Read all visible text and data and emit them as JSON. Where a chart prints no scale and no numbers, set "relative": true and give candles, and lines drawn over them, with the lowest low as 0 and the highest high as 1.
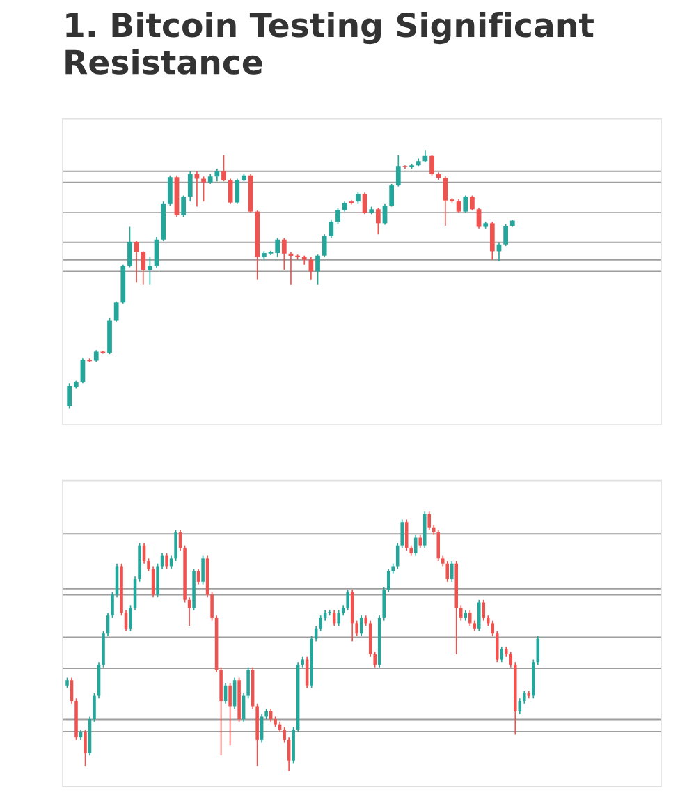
{
  "chart_data": [
    {
      "type": "candlestick",
      "title": "1. Bitcoin Testing Significant Resistance",
      "relative": true,
      "categories": [
        null,
        null,
        null,
        null,
        null,
        null,
        null,
        null,
        null,
        null,
        null,
        null,
        null,
        null,
        null,
        null,
        null,
        null,
        null,
        null,
        null,
        null,
        null,
        null,
        null,
        null,
        null,
        null,
        null,
        null,
        null,
        null,
        null,
        null,
        null,
        null,
        null,
        null,
        null,
        null,
        null,
        null,
        null,
        null,
        null,
        null,
        null,
        null,
        null,
        null,
        null,
        null,
        null,
        null,
        null,
        null,
        null,
        null,
        null,
        null,
        null,
        null,
        null,
        null,
        null,
        null,
        null
      ],
      "ohlc": [
        [
          0.01,
          0.098,
          0,
          0.088
        ],
        [
          0.084,
          0.107,
          0.078,
          0.104
        ],
        [
          0.104,
          0.195,
          0.098,
          0.189
        ],
        [
          0.189,
          0.195,
          0.18,
          0.184
        ],
        [
          0.186,
          0.227,
          0.18,
          0.221
        ],
        [
          0.221,
          0.225,
          0.213,
          0.217
        ],
        [
          0.217,
          0.352,
          0.211,
          0.342
        ],
        [
          0.342,
          0.414,
          0.336,
          0.41
        ],
        [
          0.41,
          0.557,
          0.406,
          0.551
        ],
        [
          0.551,
          0.703,
          0.547,
          0.645
        ],
        [
          0.645,
          0.648,
          0.488,
          0.605
        ],
        [
          0.605,
          0.609,
          0.479,
          0.537
        ],
        [
          0.537,
          0.586,
          0.479,
          0.551
        ],
        [
          0.551,
          0.664,
          0.543,
          0.654
        ],
        [
          0.654,
          0.801,
          0.648,
          0.791
        ],
        [
          0.791,
          0.902,
          0.785,
          0.895
        ],
        [
          0.895,
          0.902,
          0.742,
          0.748
        ],
        [
          0.748,
          0.824,
          0.742,
          0.82
        ],
        [
          0.82,
          0.918,
          0.801,
          0.908
        ],
        [
          0.908,
          0.918,
          0.781,
          0.889
        ],
        [
          0.889,
          0.898,
          0.801,
          0.875
        ],
        [
          0.875,
          0.908,
          0.869,
          0.898
        ],
        [
          0.898,
          0.928,
          0.879,
          0.918
        ],
        [
          0.918,
          0.98,
          0.879,
          0.883
        ],
        [
          0.883,
          0.889,
          0.791,
          0.797
        ],
        [
          0.797,
          0.889,
          0.791,
          0.883
        ],
        [
          0.883,
          0.908,
          0.879,
          0.902
        ],
        [
          0.902,
          0.908,
          0.758,
          0.762
        ],
        [
          0.762,
          0.766,
          0.498,
          0.586
        ],
        [
          0.586,
          0.609,
          0.576,
          0.602
        ],
        [
          0.6,
          0.611,
          0.594,
          0.605
        ],
        [
          0.602,
          0.66,
          0.586,
          0.654
        ],
        [
          0.654,
          0.66,
          0.537,
          0.6
        ],
        [
          0.6,
          0.605,
          0.479,
          0.59
        ],
        [
          0.592,
          0.596,
          0.576,
          0.586
        ],
        [
          0.586,
          0.592,
          0.557,
          0.576
        ],
        [
          0.576,
          0.586,
          0.498,
          0.531
        ],
        [
          0.531,
          0.596,
          0.479,
          0.592
        ],
        [
          0.592,
          0.674,
          0.586,
          0.668
        ],
        [
          0.668,
          0.732,
          0.66,
          0.723
        ],
        [
          0.723,
          0.775,
          0.713,
          0.768
        ],
        [
          0.768,
          0.801,
          0.762,
          0.795
        ],
        [
          0.801,
          0.807,
          0.789,
          0.795
        ],
        [
          0.801,
          0.836,
          0.791,
          0.83
        ],
        [
          0.83,
          0.836,
          0.752,
          0.758
        ],
        [
          0.758,
          0.781,
          0.752,
          0.771
        ],
        [
          0.771,
          0.777,
          0.674,
          0.717
        ],
        [
          0.717,
          0.791,
          0.711,
          0.785
        ],
        [
          0.785,
          0.869,
          0.781,
          0.863
        ],
        [
          0.863,
          0.98,
          0.859,
          0.938
        ],
        [
          0.938,
          0.941,
          0.928,
          0.934
        ],
        [
          0.934,
          0.947,
          0.928,
          0.941
        ],
        [
          0.941,
          0.967,
          0.938,
          0.957
        ],
        [
          0.957,
          1.0,
          0.953,
          0.977
        ],
        [
          0.977,
          0.98,
          0.902,
          0.908
        ],
        [
          0.908,
          0.914,
          0.885,
          0.893
        ],
        [
          0.893,
          0.898,
          0.707,
          0.805
        ],
        [
          0.809,
          0.814,
          0.797,
          0.803
        ],
        [
          0.803,
          0.811,
          0.758,
          0.762
        ],
        [
          0.762,
          0.824,
          0.758,
          0.82
        ],
        [
          0.82,
          0.824,
          0.766,
          0.771
        ],
        [
          0.771,
          0.777,
          0.697,
          0.703
        ],
        [
          0.703,
          0.723,
          0.697,
          0.717
        ],
        [
          0.717,
          0.723,
          0.576,
          0.609
        ],
        [
          0.609,
          0.641,
          0.57,
          0.635
        ],
        [
          0.635,
          0.713,
          0.629,
          0.707
        ],
        [
          0.707,
          0.73,
          0.703,
          0.727
        ]
      ],
      "ref_lines": [
        {
          "axis": "y",
          "value": 0.918
        },
        {
          "axis": "y",
          "value": 0.875
        },
        {
          "axis": "y",
          "value": 0.758
        },
        {
          "axis": "y",
          "value": 0.643
        },
        {
          "axis": "y",
          "value": 0.576
        },
        {
          "axis": "y",
          "value": 0.531
        }
      ]
    },
    {
      "type": "candlestick",
      "relative": true,
      "categories": [
        null,
        null,
        null,
        null,
        null,
        null,
        null,
        null,
        null,
        null,
        null,
        null,
        null,
        null,
        null,
        null,
        null,
        null,
        null,
        null,
        null,
        null,
        null,
        null,
        null,
        null,
        null,
        null,
        null,
        null,
        null,
        null,
        null,
        null,
        null,
        null,
        null,
        null,
        null,
        null,
        null,
        null,
        null,
        null,
        null,
        null,
        null,
        null,
        null,
        null,
        null,
        null,
        null,
        null,
        null,
        null,
        null,
        null,
        null,
        null,
        null,
        null,
        null,
        null,
        null,
        null,
        null,
        null,
        null,
        null,
        null,
        null,
        null,
        null,
        null,
        null,
        null,
        null,
        null,
        null,
        null,
        null,
        null,
        null,
        null,
        null,
        null,
        null,
        null,
        null,
        null,
        null,
        null,
        null,
        null,
        null,
        null,
        null,
        null,
        null,
        null,
        null,
        null,
        null,
        null
      ],
      "ohlc": [
        [
          0.33,
          0.36,
          0.32,
          0.35
        ],
        [
          0.35,
          0.36,
          0.26,
          0.27
        ],
        [
          0.27,
          0.28,
          0.12,
          0.13
        ],
        [
          0.13,
          0.16,
          0.12,
          0.15
        ],
        [
          0.15,
          0.16,
          0.02,
          0.07
        ],
        [
          0.07,
          0.21,
          0.06,
          0.2
        ],
        [
          0.2,
          0.3,
          0.19,
          0.29
        ],
        [
          0.29,
          0.42,
          0.28,
          0.41
        ],
        [
          0.41,
          0.54,
          0.4,
          0.53
        ],
        [
          0.53,
          0.61,
          0.52,
          0.6
        ],
        [
          0.6,
          0.69,
          0.59,
          0.68
        ],
        [
          0.68,
          0.8,
          0.67,
          0.79
        ],
        [
          0.79,
          0.8,
          0.6,
          0.61
        ],
        [
          0.61,
          0.62,
          0.54,
          0.55
        ],
        [
          0.55,
          0.64,
          0.54,
          0.63
        ],
        [
          0.63,
          0.75,
          0.62,
          0.74
        ],
        [
          0.74,
          0.88,
          0.73,
          0.87
        ],
        [
          0.87,
          0.88,
          0.8,
          0.81
        ],
        [
          0.81,
          0.82,
          0.77,
          0.78
        ],
        [
          0.78,
          0.79,
          0.67,
          0.68
        ],
        [
          0.68,
          0.8,
          0.67,
          0.79
        ],
        [
          0.79,
          0.84,
          0.78,
          0.83
        ],
        [
          0.83,
          0.84,
          0.78,
          0.79
        ],
        [
          0.79,
          0.83,
          0.78,
          0.82
        ],
        [
          0.82,
          0.93,
          0.81,
          0.92
        ],
        [
          0.92,
          0.93,
          0.85,
          0.86
        ],
        [
          0.86,
          0.87,
          0.65,
          0.66
        ],
        [
          0.66,
          0.67,
          0.56,
          0.63
        ],
        [
          0.63,
          0.78,
          0.62,
          0.77
        ],
        [
          0.77,
          0.78,
          0.72,
          0.73
        ],
        [
          0.73,
          0.83,
          0.72,
          0.82
        ],
        [
          0.82,
          0.83,
          0.67,
          0.68
        ],
        [
          0.68,
          0.69,
          0.58,
          0.59
        ],
        [
          0.59,
          0.6,
          0.38,
          0.39
        ],
        [
          0.39,
          0.4,
          0.06,
          0.27
        ],
        [
          0.27,
          0.34,
          0.26,
          0.33
        ],
        [
          0.33,
          0.34,
          0.1,
          0.25
        ],
        [
          0.25,
          0.36,
          0.24,
          0.35
        ],
        [
          0.35,
          0.36,
          0.19,
          0.2
        ],
        [
          0.2,
          0.3,
          0.19,
          0.29
        ],
        [
          0.29,
          0.4,
          0.28,
          0.39
        ],
        [
          0.39,
          0.4,
          0.24,
          0.25
        ],
        [
          0.25,
          0.26,
          0.02,
          0.12
        ],
        [
          0.12,
          0.22,
          0.11,
          0.21
        ],
        [
          0.21,
          0.24,
          0.2,
          0.23
        ],
        [
          0.23,
          0.24,
          0.19,
          0.2
        ],
        [
          0.2,
          0.21,
          0.17,
          0.18
        ],
        [
          0.18,
          0.19,
          0.15,
          0.16
        ],
        [
          0.16,
          0.17,
          0.11,
          0.12
        ],
        [
          0.12,
          0.13,
          0.0,
          0.04
        ],
        [
          0.04,
          0.17,
          0.03,
          0.16
        ],
        [
          0.16,
          0.42,
          0.15,
          0.41
        ],
        [
          0.41,
          0.44,
          0.4,
          0.43
        ],
        [
          0.43,
          0.44,
          0.32,
          0.33
        ],
        [
          0.33,
          0.52,
          0.32,
          0.51
        ],
        [
          0.51,
          0.56,
          0.5,
          0.55
        ],
        [
          0.55,
          0.6,
          0.54,
          0.59
        ],
        [
          0.59,
          0.62,
          0.58,
          0.61
        ],
        [
          0.61,
          0.62,
          0.6,
          0.61
        ],
        [
          0.61,
          0.62,
          0.56,
          0.57
        ],
        [
          0.57,
          0.62,
          0.56,
          0.61
        ],
        [
          0.61,
          0.64,
          0.6,
          0.63
        ],
        [
          0.63,
          0.7,
          0.62,
          0.69
        ],
        [
          0.69,
          0.7,
          0.5,
          0.57
        ],
        [
          0.57,
          0.58,
          0.52,
          0.53
        ],
        [
          0.53,
          0.6,
          0.52,
          0.59
        ],
        [
          0.59,
          0.6,
          0.56,
          0.57
        ],
        [
          0.57,
          0.58,
          0.44,
          0.45
        ],
        [
          0.45,
          0.46,
          0.4,
          0.41
        ],
        [
          0.41,
          0.6,
          0.4,
          0.59
        ],
        [
          0.59,
          0.71,
          0.58,
          0.7
        ],
        [
          0.7,
          0.78,
          0.69,
          0.77
        ],
        [
          0.77,
          0.8,
          0.76,
          0.79
        ],
        [
          0.79,
          0.88,
          0.78,
          0.87
        ],
        [
          0.87,
          0.97,
          0.86,
          0.96
        ],
        [
          0.96,
          0.97,
          0.85,
          0.86
        ],
        [
          0.86,
          0.87,
          0.83,
          0.84
        ],
        [
          0.84,
          0.91,
          0.83,
          0.9
        ],
        [
          0.9,
          0.91,
          0.86,
          0.87
        ],
        [
          0.87,
          1.0,
          0.86,
          0.99
        ],
        [
          0.99,
          1.0,
          0.93,
          0.94
        ],
        [
          0.94,
          0.95,
          0.91,
          0.92
        ],
        [
          0.92,
          0.93,
          0.81,
          0.82
        ],
        [
          0.82,
          0.83,
          0.79,
          0.8
        ],
        [
          0.8,
          0.81,
          0.73,
          0.74
        ],
        [
          0.74,
          0.81,
          0.73,
          0.8
        ],
        [
          0.8,
          0.81,
          0.45,
          0.63
        ],
        [
          0.63,
          0.64,
          0.58,
          0.59
        ],
        [
          0.59,
          0.62,
          0.58,
          0.61
        ],
        [
          0.61,
          0.62,
          0.56,
          0.57
        ],
        [
          0.57,
          0.58,
          0.54,
          0.55
        ],
        [
          0.55,
          0.66,
          0.54,
          0.65
        ],
        [
          0.65,
          0.66,
          0.58,
          0.59
        ],
        [
          0.59,
          0.6,
          0.56,
          0.57
        ],
        [
          0.57,
          0.58,
          0.52,
          0.53
        ],
        [
          0.53,
          0.54,
          0.42,
          0.43
        ],
        [
          0.43,
          0.48,
          0.42,
          0.47
        ],
        [
          0.47,
          0.48,
          0.44,
          0.45
        ],
        [
          0.45,
          0.46,
          0.4,
          0.41
        ],
        [
          0.41,
          0.42,
          0.14,
          0.23
        ],
        [
          0.23,
          0.28,
          0.22,
          0.27
        ],
        [
          0.27,
          0.31,
          0.26,
          0.3
        ],
        [
          0.3,
          0.31,
          0.28,
          0.29
        ],
        [
          0.29,
          0.43,
          0.28,
          0.42
        ],
        [
          0.42,
          0.52,
          0.41,
          0.51
        ]
      ],
      "ref_lines": [
        {
          "axis": "y",
          "value": 0.914
        },
        {
          "axis": "y",
          "value": 0.703
        },
        {
          "axis": "y",
          "value": 0.68
        },
        {
          "axis": "y",
          "value": 0.516
        },
        {
          "axis": "y",
          "value": 0.396
        },
        {
          "axis": "y",
          "value": 0.199
        },
        {
          "axis": "y",
          "value": 0.152
        }
      ]
    }
  ]
}
